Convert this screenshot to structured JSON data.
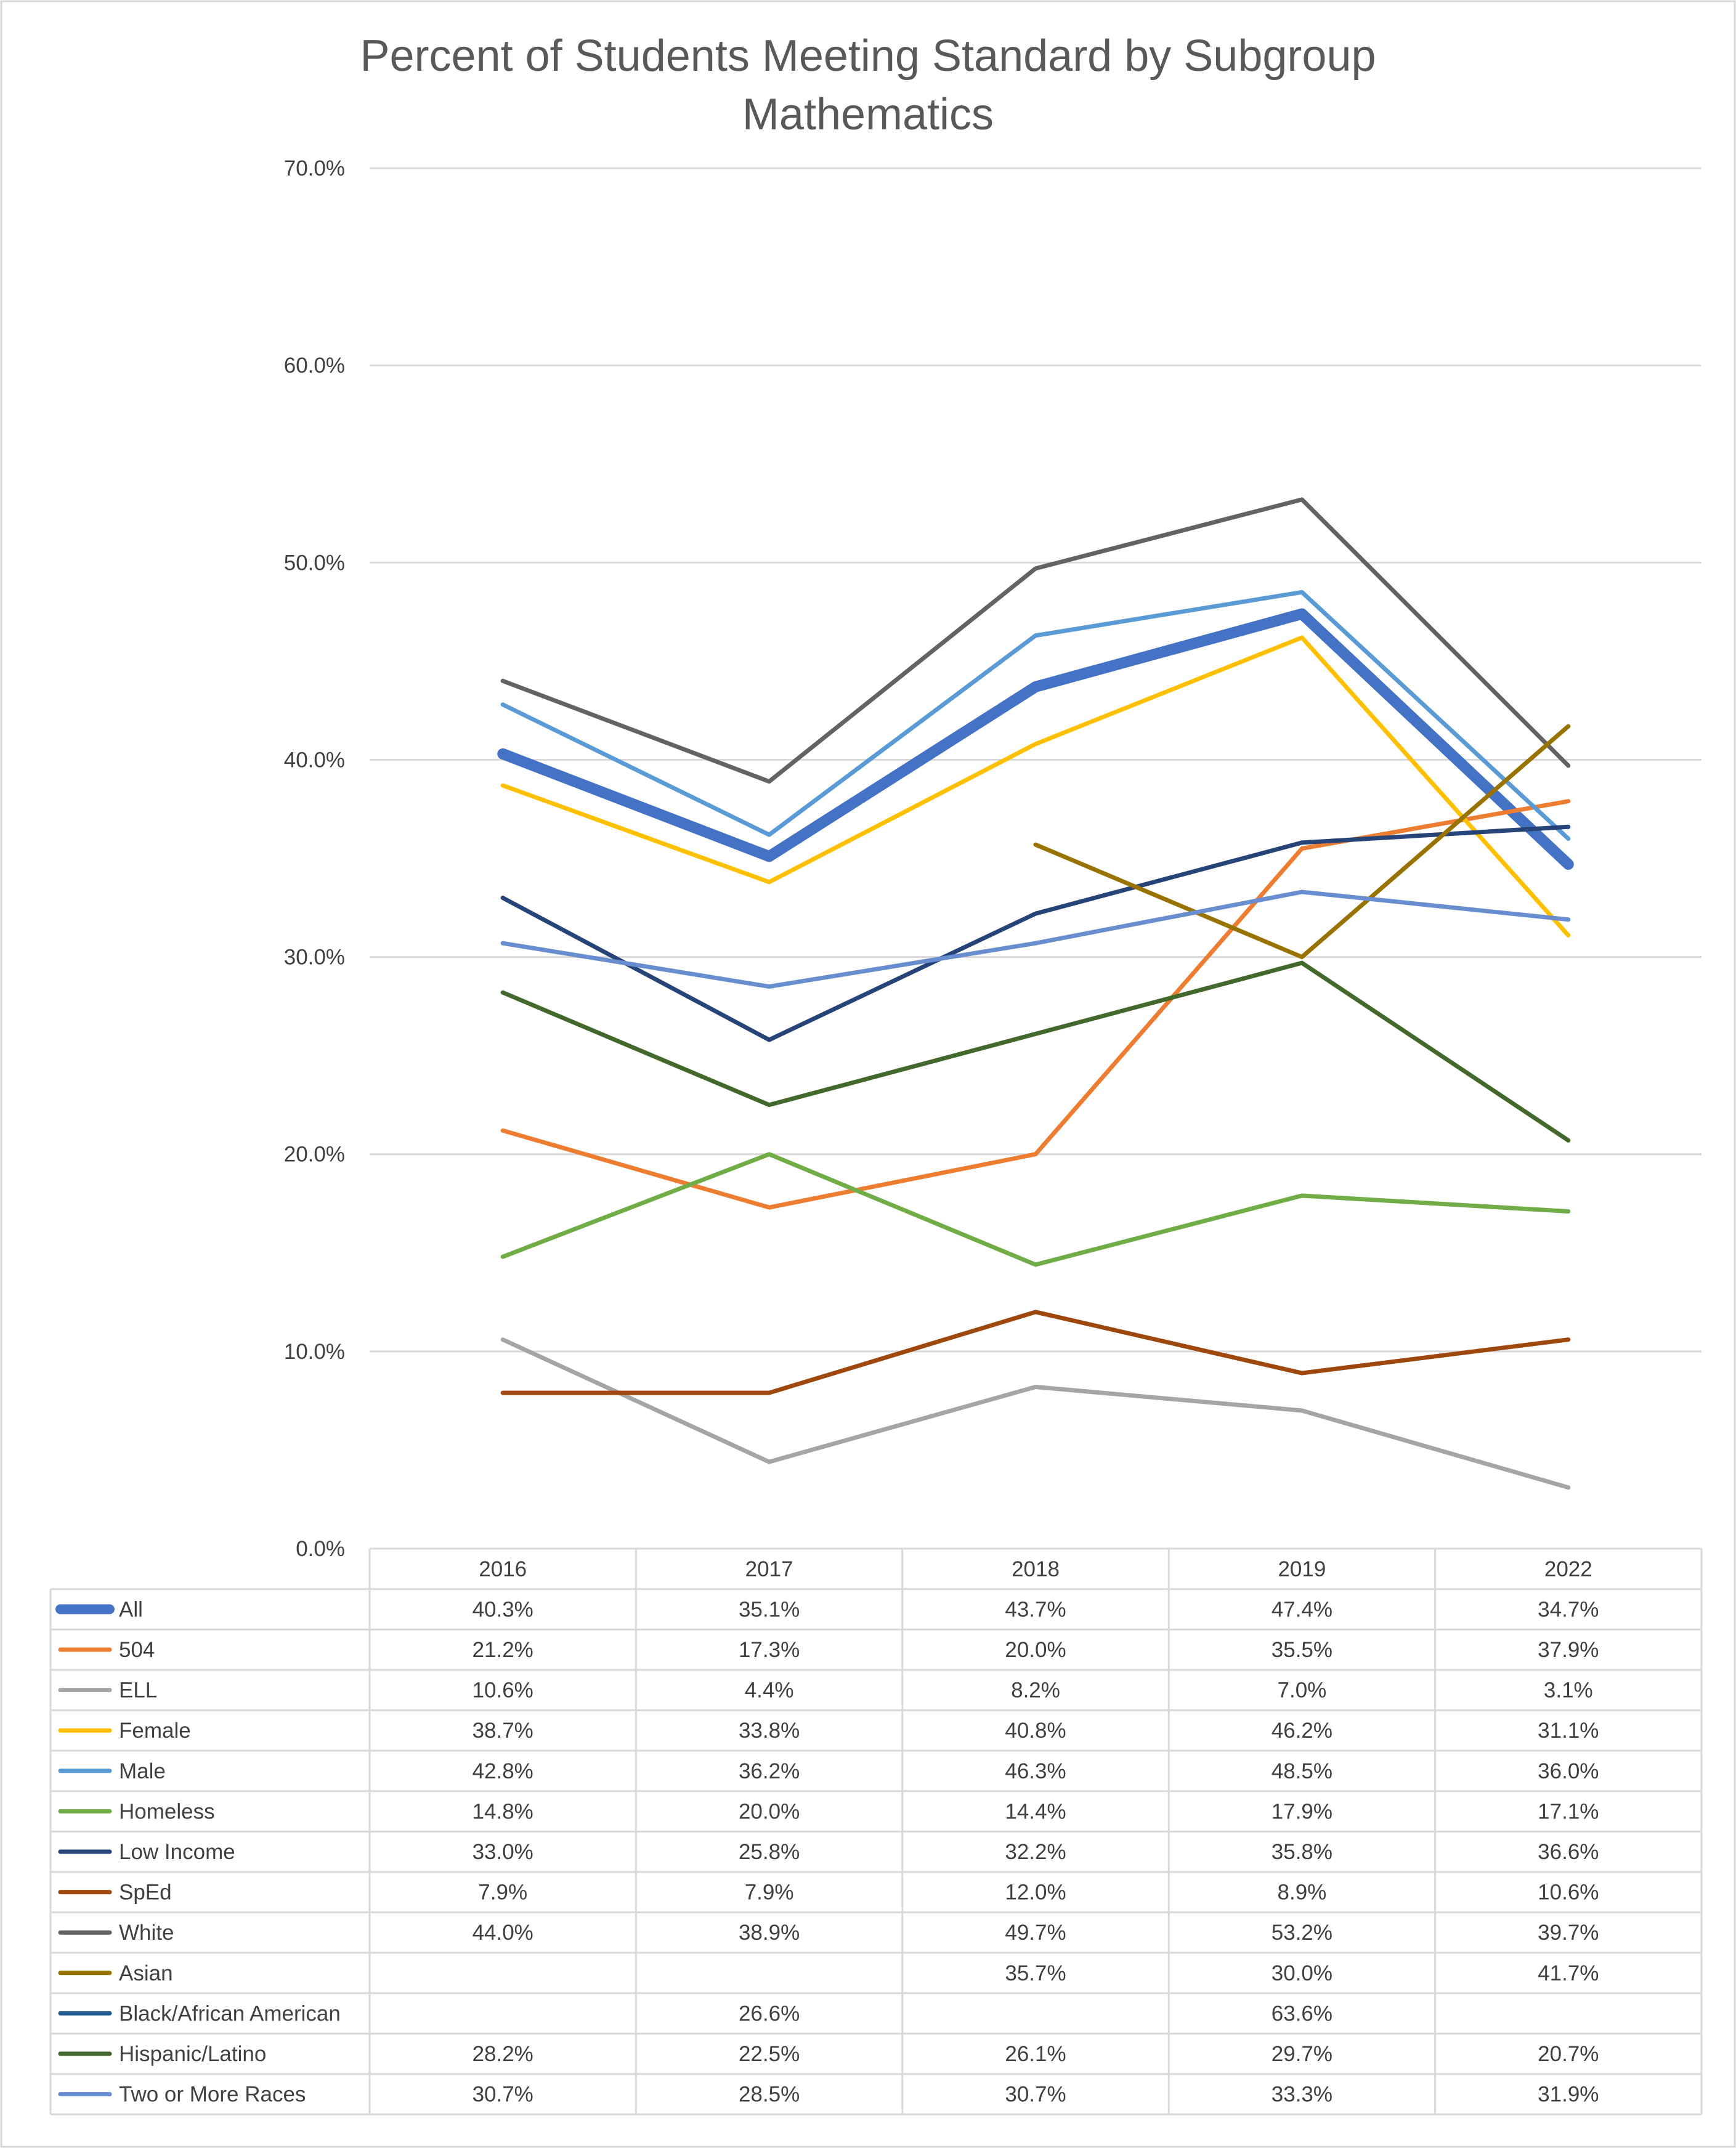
{
  "chart_data": {
    "type": "line",
    "title": "Percent of Students Meeting Standard by Subgroup",
    "subtitle": "Mathematics",
    "categories": [
      "2016",
      "2017",
      "2018",
      "2019",
      "2022"
    ],
    "ylim": [
      0,
      70
    ],
    "yticks": [
      "0.0%",
      "10.0%",
      "20.0%",
      "30.0%",
      "40.0%",
      "50.0%",
      "60.0%",
      "70.0%"
    ],
    "grid": true,
    "legend": "data-table-below",
    "series": [
      {
        "name": "All",
        "color": "#4472C4",
        "emphasis": true,
        "values": [
          40.3,
          35.1,
          43.7,
          47.4,
          34.7
        ],
        "labels": [
          "40.3%",
          "35.1%",
          "43.7%",
          "47.4%",
          "34.7%"
        ]
      },
      {
        "name": "504",
        "color": "#ED7D31",
        "values": [
          21.2,
          17.3,
          20.0,
          35.5,
          37.9
        ],
        "labels": [
          "21.2%",
          "17.3%",
          "20.0%",
          "35.5%",
          "37.9%"
        ]
      },
      {
        "name": "ELL",
        "color": "#A5A5A5",
        "values": [
          10.6,
          4.4,
          8.2,
          7.0,
          3.1
        ],
        "labels": [
          "10.6%",
          "4.4%",
          "8.2%",
          "7.0%",
          "3.1%"
        ]
      },
      {
        "name": "Female",
        "color": "#FFC000",
        "values": [
          38.7,
          33.8,
          40.8,
          46.2,
          31.1
        ],
        "labels": [
          "38.7%",
          "33.8%",
          "40.8%",
          "46.2%",
          "31.1%"
        ]
      },
      {
        "name": "Male",
        "color": "#5B9BD5",
        "values": [
          42.8,
          36.2,
          46.3,
          48.5,
          36.0
        ],
        "labels": [
          "42.8%",
          "36.2%",
          "46.3%",
          "48.5%",
          "36.0%"
        ]
      },
      {
        "name": "Homeless",
        "color": "#70AD47",
        "values": [
          14.8,
          20.0,
          14.4,
          17.9,
          17.1
        ],
        "labels": [
          "14.8%",
          "20.0%",
          "14.4%",
          "17.9%",
          "17.1%"
        ]
      },
      {
        "name": "Low Income",
        "color": "#264478",
        "values": [
          33.0,
          25.8,
          32.2,
          35.8,
          36.6
        ],
        "labels": [
          "33.0%",
          "25.8%",
          "32.2%",
          "35.8%",
          "36.6%"
        ]
      },
      {
        "name": "SpEd",
        "color": "#9E480E",
        "values": [
          7.9,
          7.9,
          12.0,
          8.9,
          10.6
        ],
        "labels": [
          "7.9%",
          "7.9%",
          "12.0%",
          "8.9%",
          "10.6%"
        ]
      },
      {
        "name": "White",
        "color": "#636363",
        "values": [
          44.0,
          38.9,
          49.7,
          53.2,
          39.7
        ],
        "labels": [
          "44.0%",
          "38.9%",
          "49.7%",
          "53.2%",
          "39.7%"
        ]
      },
      {
        "name": "Asian",
        "color": "#997300",
        "values": [
          null,
          null,
          35.7,
          30.0,
          41.7
        ],
        "labels": [
          "",
          "",
          "35.7%",
          "30.0%",
          "41.7%"
        ]
      },
      {
        "name": "Black/African American",
        "color": "#255E91",
        "values": [
          null,
          26.6,
          null,
          63.6,
          null
        ],
        "labels": [
          "",
          "26.6%",
          "",
          "63.6%",
          ""
        ]
      },
      {
        "name": "Hispanic/Latino",
        "color": "#43682B",
        "values": [
          28.2,
          22.5,
          26.1,
          29.7,
          20.7
        ],
        "labels": [
          "28.2%",
          "22.5%",
          "26.1%",
          "29.7%",
          "20.7%"
        ]
      },
      {
        "name": "Two or More Races",
        "color": "#698ED0",
        "values": [
          30.7,
          28.5,
          30.7,
          33.3,
          31.9
        ],
        "labels": [
          "30.7%",
          "28.5%",
          "30.7%",
          "33.3%",
          "31.9%"
        ]
      }
    ]
  }
}
